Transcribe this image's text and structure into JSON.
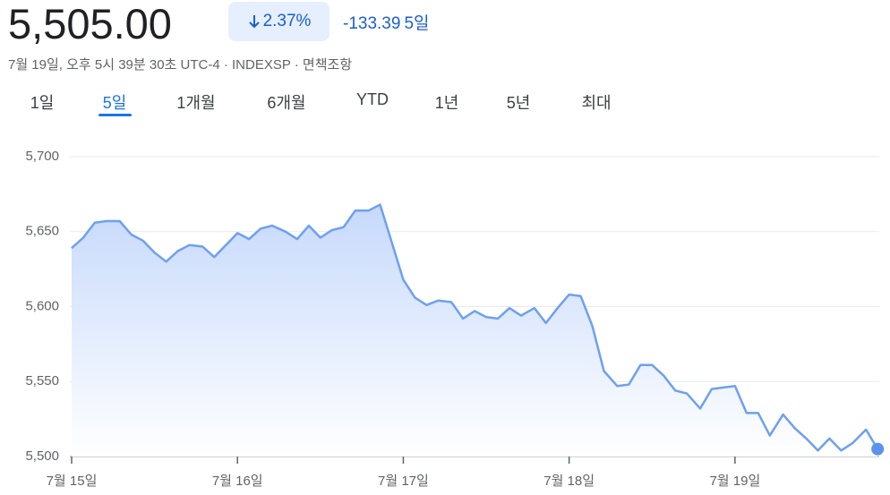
{
  "header": {
    "price": "5,505.00",
    "change_pct": "2.37%",
    "change_abs": "-133.39",
    "period": "5일",
    "subtitle": "7월 19일, 오후 5시 39분 30초 UTC-4 · INDEXSP · 면책조항"
  },
  "tabs": [
    "1일",
    "5일",
    "1개월",
    "6개월",
    "YTD",
    "1년",
    "5년",
    "최대"
  ],
  "selected_tab": 1,
  "chart_data": {
    "type": "area",
    "x": [
      0,
      0.07,
      0.14,
      0.21,
      0.29,
      0.36,
      0.43,
      0.5,
      0.57,
      0.64,
      0.71,
      0.79,
      0.86,
      0.93,
      1.0,
      1.07,
      1.14,
      1.21,
      1.29,
      1.36,
      1.43,
      1.5,
      1.57,
      1.64,
      1.71,
      1.79,
      1.86,
      1.93,
      2.0,
      2.07,
      2.14,
      2.21,
      2.29,
      2.36,
      2.43,
      2.5,
      2.57,
      2.64,
      2.71,
      2.79,
      2.86,
      2.93,
      3.0,
      3.07,
      3.14,
      3.21,
      3.29,
      3.36,
      3.43,
      3.5,
      3.57,
      3.64,
      3.71,
      3.79,
      3.86,
      3.93,
      4.0,
      4.07,
      4.14,
      4.21,
      4.29,
      4.36,
      4.43,
      4.5,
      4.57,
      4.64,
      4.71,
      4.79,
      4.86
    ],
    "values": [
      5639,
      5646,
      5656,
      5657,
      5657,
      5648,
      5644,
      5636,
      5630,
      5637,
      5641,
      5640,
      5633,
      5641,
      5649,
      5645,
      5652,
      5654,
      5650,
      5645,
      5654,
      5646,
      5651,
      5653,
      5664,
      5664,
      5668,
      5643,
      5618,
      5606,
      5601,
      5604,
      5603,
      5592,
      5597,
      5593,
      5592,
      5599,
      5594,
      5599,
      5589,
      5599,
      5608,
      5607,
      5587,
      5557,
      5547,
      5548,
      5561,
      5561,
      5554,
      5544,
      5542,
      5532,
      5545,
      5546,
      5547,
      5529,
      5529,
      5514,
      5528,
      5519,
      5512,
      5504,
      5512,
      5504,
      5509,
      5518,
      5505
    ],
    "color": "#6ea0f0",
    "xlim": [
      0,
      4.87
    ],
    "xticks": [
      {
        "value": 0,
        "label": "7월 15일"
      },
      {
        "value": 1,
        "label": "7월 16일"
      },
      {
        "value": 2,
        "label": "7월 17일"
      },
      {
        "value": 3,
        "label": "7월 18일"
      },
      {
        "value": 4,
        "label": "7월 19일"
      }
    ],
    "ylim": [
      5500,
      5700
    ],
    "yticks": [
      {
        "value": 5500,
        "label": "5,500"
      },
      {
        "value": 5550,
        "label": "5,550"
      },
      {
        "value": 5600,
        "label": "5,600"
      },
      {
        "value": 5650,
        "label": "5,650"
      },
      {
        "value": 5700,
        "label": "5,700"
      }
    ],
    "grid": true
  }
}
